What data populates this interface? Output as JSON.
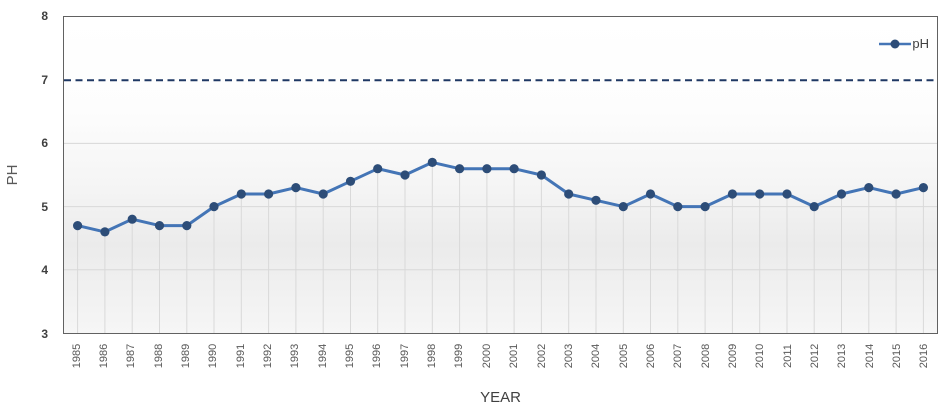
{
  "chart_data": {
    "type": "line",
    "title": "",
    "xlabel": "YEAR",
    "ylabel": "PH",
    "categories": [
      "1985",
      "1986",
      "1987",
      "1988",
      "1989",
      "1990",
      "1991",
      "1992",
      "1993",
      "1994",
      "1995",
      "1996",
      "1997",
      "1998",
      "1999",
      "2000",
      "2001",
      "2002",
      "2003",
      "2004",
      "2005",
      "2006",
      "2007",
      "2008",
      "2009",
      "2010",
      "2011",
      "2012",
      "2013",
      "2014",
      "2015",
      "2016"
    ],
    "series": [
      {
        "name": "pH",
        "values": [
          4.7,
          4.6,
          4.8,
          4.7,
          4.7,
          5.0,
          5.2,
          5.2,
          5.3,
          5.2,
          5.4,
          5.6,
          5.5,
          5.7,
          5.6,
          5.6,
          5.6,
          5.5,
          5.2,
          5.1,
          5.0,
          5.2,
          5.0,
          5.0,
          5.2,
          5.2,
          5.2,
          5.0,
          5.2,
          5.3,
          5.2,
          5.3
        ]
      }
    ],
    "ylim": [
      3,
      8
    ],
    "yticks": [
      3,
      4,
      5,
      6,
      7,
      8
    ],
    "gridlines_y": [
      4,
      5,
      6
    ],
    "reference_line": {
      "value": 7,
      "style": "dashed"
    },
    "drop_lines": true,
    "legend": {
      "position": "top-right"
    },
    "colors": {
      "line": "#4475b6",
      "marker": "#2d4d78",
      "reference": "#1f3864",
      "gridline": "#d8d8d8",
      "dropline": "#d9d9d9",
      "ytick_text": "#404040",
      "xtick_text": "#595959"
    }
  }
}
